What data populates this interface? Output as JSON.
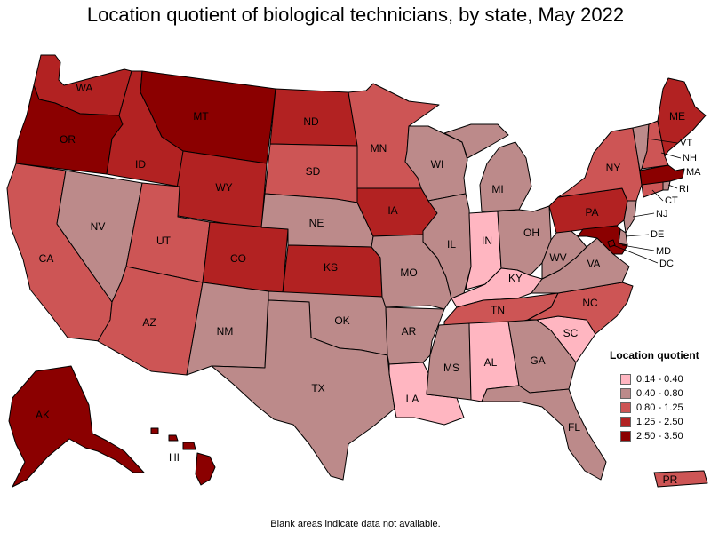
{
  "title": "Location quotient of biological technicians, by state, May 2022",
  "legend": {
    "title": "Location quotient",
    "bins": [
      {
        "label": "0.14 - 0.40",
        "color": "#ffb6c1"
      },
      {
        "label": "0.40 - 0.80",
        "color": "#bc8a8a"
      },
      {
        "label": "0.80 - 1.25",
        "color": "#cd5555"
      },
      {
        "label": "1.25 - 2.50",
        "color": "#b22222"
      },
      {
        "label": "2.50 - 3.50",
        "color": "#8b0000"
      }
    ]
  },
  "footnote": "Blank areas indicate data not available.",
  "states": {
    "WA": {
      "label": "WA",
      "bin": 3
    },
    "OR": {
      "label": "OR",
      "bin": 4
    },
    "CA": {
      "label": "CA",
      "bin": 2
    },
    "ID": {
      "label": "ID",
      "bin": 3
    },
    "NV": {
      "label": "NV",
      "bin": 1
    },
    "MT": {
      "label": "MT",
      "bin": 4
    },
    "WY": {
      "label": "WY",
      "bin": 3
    },
    "UT": {
      "label": "UT",
      "bin": 2
    },
    "AZ": {
      "label": "AZ",
      "bin": 2
    },
    "CO": {
      "label": "CO",
      "bin": 3
    },
    "NM": {
      "label": "NM",
      "bin": 1
    },
    "ND": {
      "label": "ND",
      "bin": 3
    },
    "SD": {
      "label": "SD",
      "bin": 2
    },
    "NE": {
      "label": "NE",
      "bin": 1
    },
    "KS": {
      "label": "KS",
      "bin": 3
    },
    "OK": {
      "label": "OK",
      "bin": 1
    },
    "TX": {
      "label": "TX",
      "bin": 1
    },
    "MN": {
      "label": "MN",
      "bin": 2
    },
    "IA": {
      "label": "IA",
      "bin": 3
    },
    "MO": {
      "label": "MO",
      "bin": 1
    },
    "AR": {
      "label": "AR",
      "bin": 1
    },
    "LA": {
      "label": "LA",
      "bin": 0
    },
    "WI": {
      "label": "WI",
      "bin": 1
    },
    "IL": {
      "label": "IL",
      "bin": 1
    },
    "MI": {
      "label": "MI",
      "bin": 1
    },
    "IN": {
      "label": "IN",
      "bin": 0
    },
    "OH": {
      "label": "OH",
      "bin": 1
    },
    "KY": {
      "label": "KY",
      "bin": 0
    },
    "TN": {
      "label": "TN",
      "bin": 2
    },
    "MS": {
      "label": "MS",
      "bin": 1
    },
    "AL": {
      "label": "AL",
      "bin": 0
    },
    "GA": {
      "label": "GA",
      "bin": 1
    },
    "FL": {
      "label": "FL",
      "bin": 1
    },
    "SC": {
      "label": "SC",
      "bin": 0
    },
    "NC": {
      "label": "NC",
      "bin": 2
    },
    "VA": {
      "label": "VA",
      "bin": 1
    },
    "WV": {
      "label": "WV",
      "bin": 1
    },
    "PA": {
      "label": "PA",
      "bin": 3
    },
    "NY": {
      "label": "NY",
      "bin": 2
    },
    "VT": {
      "label": "VT",
      "bin": 1
    },
    "NH": {
      "label": "NH",
      "bin": 2
    },
    "ME": {
      "label": "ME",
      "bin": 3
    },
    "MA": {
      "label": "MA",
      "bin": 4
    },
    "RI": {
      "label": "RI",
      "bin": 1
    },
    "CT": {
      "label": "CT",
      "bin": 2
    },
    "NJ": {
      "label": "NJ",
      "bin": 1
    },
    "DE": {
      "label": "DE",
      "bin": 1
    },
    "MD": {
      "label": "MD",
      "bin": 4
    },
    "DC": {
      "label": "DC",
      "bin": 4
    },
    "AK": {
      "label": "AK",
      "bin": 4
    },
    "HI": {
      "label": "HI",
      "bin": 4
    },
    "PR": {
      "label": "PR",
      "bin": 2
    }
  }
}
